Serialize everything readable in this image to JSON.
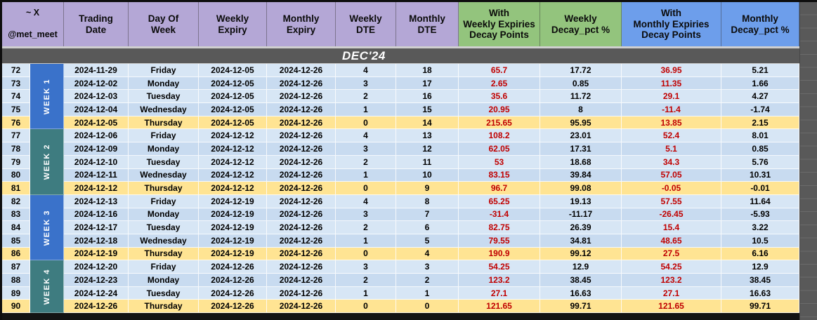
{
  "sheet": {
    "corner": {
      "line1": "~ X",
      "line2": "@met_meet"
    },
    "month_label": "DEC'24",
    "columns": [
      {
        "id": "trading_date",
        "label": "Trading\nDate",
        "group": "purple"
      },
      {
        "id": "day_of_week",
        "label": "Day Of\nWeek",
        "group": "purple"
      },
      {
        "id": "weekly_expiry",
        "label": "Weekly\nExpiry",
        "group": "purple"
      },
      {
        "id": "monthly_expiry",
        "label": "Monthly\nExpiry",
        "group": "purple"
      },
      {
        "id": "weekly_dte",
        "label": "Weekly\nDTE",
        "group": "purple"
      },
      {
        "id": "monthly_dte",
        "label": "Monthly\nDTE",
        "group": "purple"
      },
      {
        "id": "weekly_decay_points",
        "label": "With\nWeekly Expiries\nDecay Points",
        "group": "green"
      },
      {
        "id": "weekly_pct",
        "label": "Weekly\nDecay_pct %",
        "group": "green"
      },
      {
        "id": "monthly_decay_points",
        "label": "With\nMonthly Expiries\nDecay Points",
        "group": "blue"
      },
      {
        "id": "monthly_pct",
        "label": "Monthly\nDecay_pct %",
        "group": "blue"
      }
    ],
    "colors": {
      "header_purple": "#b4a7d6",
      "header_green": "#93c47d",
      "header_blue": "#6d9eeb",
      "week_band_blue": "#3a72ca",
      "week_band_teal": "#3e7c80",
      "row_light_blue": "#d7e6f5",
      "row_dark_blue": "#c8dbf0",
      "highlight_yellow": "#ffe493",
      "decay_red": "#c00000",
      "band_gray": "#595959"
    },
    "weeks": [
      {
        "label": "WEEK 1",
        "band": "blue",
        "rows": [
          {
            "num": "72",
            "date": "2024-11-29",
            "day": "Friday",
            "weekly_expiry": "2024-12-05",
            "monthly_expiry": "2024-12-26",
            "weekly_dte": "4",
            "monthly_dte": "18",
            "weekly_decay_points": "65.7",
            "weekly_pct": "17.72",
            "monthly_decay_points": "36.95",
            "monthly_pct": "5.21",
            "highlight": false
          },
          {
            "num": "73",
            "date": "2024-12-02",
            "day": "Monday",
            "weekly_expiry": "2024-12-05",
            "monthly_expiry": "2024-12-26",
            "weekly_dte": "3",
            "monthly_dte": "17",
            "weekly_decay_points": "2.65",
            "weekly_pct": "0.85",
            "monthly_decay_points": "11.35",
            "monthly_pct": "1.66",
            "highlight": false
          },
          {
            "num": "74",
            "date": "2024-12-03",
            "day": "Tuesday",
            "weekly_expiry": "2024-12-05",
            "monthly_expiry": "2024-12-26",
            "weekly_dte": "2",
            "monthly_dte": "16",
            "weekly_decay_points": "35.6",
            "weekly_pct": "11.72",
            "monthly_decay_points": "29.1",
            "monthly_pct": "4.27",
            "highlight": false
          },
          {
            "num": "75",
            "date": "2024-12-04",
            "day": "Wednesday",
            "weekly_expiry": "2024-12-05",
            "monthly_expiry": "2024-12-26",
            "weekly_dte": "1",
            "monthly_dte": "15",
            "weekly_decay_points": "20.95",
            "weekly_pct": "8",
            "monthly_decay_points": "-11.4",
            "monthly_pct": "-1.74",
            "highlight": false
          },
          {
            "num": "76",
            "date": "2024-12-05",
            "day": "Thursday",
            "weekly_expiry": "2024-12-05",
            "monthly_expiry": "2024-12-26",
            "weekly_dte": "0",
            "monthly_dte": "14",
            "weekly_decay_points": "215.65",
            "weekly_pct": "95.95",
            "monthly_decay_points": "13.85",
            "monthly_pct": "2.15",
            "highlight": true
          }
        ]
      },
      {
        "label": "WEEK 2",
        "band": "teal",
        "rows": [
          {
            "num": "77",
            "date": "2024-12-06",
            "day": "Friday",
            "weekly_expiry": "2024-12-12",
            "monthly_expiry": "2024-12-26",
            "weekly_dte": "4",
            "monthly_dte": "13",
            "weekly_decay_points": "108.2",
            "weekly_pct": "23.01",
            "monthly_decay_points": "52.4",
            "monthly_pct": "8.01",
            "highlight": false
          },
          {
            "num": "78",
            "date": "2024-12-09",
            "day": "Monday",
            "weekly_expiry": "2024-12-12",
            "monthly_expiry": "2024-12-26",
            "weekly_dte": "3",
            "monthly_dte": "12",
            "weekly_decay_points": "62.05",
            "weekly_pct": "17.31",
            "monthly_decay_points": "5.1",
            "monthly_pct": "0.85",
            "highlight": false
          },
          {
            "num": "79",
            "date": "2024-12-10",
            "day": "Tuesday",
            "weekly_expiry": "2024-12-12",
            "monthly_expiry": "2024-12-26",
            "weekly_dte": "2",
            "monthly_dte": "11",
            "weekly_decay_points": "53",
            "weekly_pct": "18.68",
            "monthly_decay_points": "34.3",
            "monthly_pct": "5.76",
            "highlight": false
          },
          {
            "num": "80",
            "date": "2024-12-11",
            "day": "Wednesday",
            "weekly_expiry": "2024-12-12",
            "monthly_expiry": "2024-12-26",
            "weekly_dte": "1",
            "monthly_dte": "10",
            "weekly_decay_points": "83.15",
            "weekly_pct": "39.84",
            "monthly_decay_points": "57.05",
            "monthly_pct": "10.31",
            "highlight": false
          },
          {
            "num": "81",
            "date": "2024-12-12",
            "day": "Thursday",
            "weekly_expiry": "2024-12-12",
            "monthly_expiry": "2024-12-26",
            "weekly_dte": "0",
            "monthly_dte": "9",
            "weekly_decay_points": "96.7",
            "weekly_pct": "99.08",
            "monthly_decay_points": "-0.05",
            "monthly_pct": "-0.01",
            "highlight": true
          }
        ]
      },
      {
        "label": "WEEK 3",
        "band": "blue",
        "rows": [
          {
            "num": "82",
            "date": "2024-12-13",
            "day": "Friday",
            "weekly_expiry": "2024-12-19",
            "monthly_expiry": "2024-12-26",
            "weekly_dte": "4",
            "monthly_dte": "8",
            "weekly_decay_points": "65.25",
            "weekly_pct": "19.13",
            "monthly_decay_points": "57.55",
            "monthly_pct": "11.64",
            "highlight": false
          },
          {
            "num": "83",
            "date": "2024-12-16",
            "day": "Monday",
            "weekly_expiry": "2024-12-19",
            "monthly_expiry": "2024-12-26",
            "weekly_dte": "3",
            "monthly_dte": "7",
            "weekly_decay_points": "-31.4",
            "weekly_pct": "-11.17",
            "monthly_decay_points": "-26.45",
            "monthly_pct": "-5.93",
            "highlight": false
          },
          {
            "num": "84",
            "date": "2024-12-17",
            "day": "Tuesday",
            "weekly_expiry": "2024-12-19",
            "monthly_expiry": "2024-12-26",
            "weekly_dte": "2",
            "monthly_dte": "6",
            "weekly_decay_points": "82.75",
            "weekly_pct": "26.39",
            "monthly_decay_points": "15.4",
            "monthly_pct": "3.22",
            "highlight": false
          },
          {
            "num": "85",
            "date": "2024-12-18",
            "day": "Wednesday",
            "weekly_expiry": "2024-12-19",
            "monthly_expiry": "2024-12-26",
            "weekly_dte": "1",
            "monthly_dte": "5",
            "weekly_decay_points": "79.55",
            "weekly_pct": "34.81",
            "monthly_decay_points": "48.65",
            "monthly_pct": "10.5",
            "highlight": false
          },
          {
            "num": "86",
            "date": "2024-12-19",
            "day": "Thursday",
            "weekly_expiry": "2024-12-19",
            "monthly_expiry": "2024-12-26",
            "weekly_dte": "0",
            "monthly_dte": "4",
            "weekly_decay_points": "190.9",
            "weekly_pct": "99.12",
            "monthly_decay_points": "27.5",
            "monthly_pct": "6.16",
            "highlight": true
          }
        ]
      },
      {
        "label": "WEEK 4",
        "band": "teal",
        "rows": [
          {
            "num": "87",
            "date": "2024-12-20",
            "day": "Friday",
            "weekly_expiry": "2024-12-26",
            "monthly_expiry": "2024-12-26",
            "weekly_dte": "3",
            "monthly_dte": "3",
            "weekly_decay_points": "54.25",
            "weekly_pct": "12.9",
            "monthly_decay_points": "54.25",
            "monthly_pct": "12.9",
            "highlight": false
          },
          {
            "num": "88",
            "date": "2024-12-23",
            "day": "Monday",
            "weekly_expiry": "2024-12-26",
            "monthly_expiry": "2024-12-26",
            "weekly_dte": "2",
            "monthly_dte": "2",
            "weekly_decay_points": "123.2",
            "weekly_pct": "38.45",
            "monthly_decay_points": "123.2",
            "monthly_pct": "38.45",
            "highlight": false
          },
          {
            "num": "89",
            "date": "2024-12-24",
            "day": "Tuesday",
            "weekly_expiry": "2024-12-26",
            "monthly_expiry": "2024-12-26",
            "weekly_dte": "1",
            "monthly_dte": "1",
            "weekly_decay_points": "27.1",
            "weekly_pct": "16.63",
            "monthly_decay_points": "27.1",
            "monthly_pct": "16.63",
            "highlight": false
          },
          {
            "num": "90",
            "date": "2024-12-26",
            "day": "Thursday",
            "weekly_expiry": "2024-12-26",
            "monthly_expiry": "2024-12-26",
            "weekly_dte": "0",
            "monthly_dte": "0",
            "weekly_decay_points": "121.65",
            "weekly_pct": "99.71",
            "monthly_decay_points": "121.65",
            "monthly_pct": "99.71",
            "highlight": true
          }
        ]
      }
    ]
  }
}
